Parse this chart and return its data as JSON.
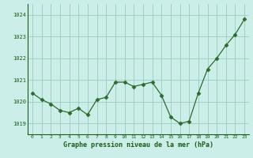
{
  "x": [
    0,
    1,
    2,
    3,
    4,
    5,
    6,
    7,
    8,
    9,
    10,
    11,
    12,
    13,
    14,
    15,
    16,
    17,
    18,
    19,
    20,
    21,
    22,
    23
  ],
  "y": [
    1020.4,
    1020.1,
    1019.9,
    1019.6,
    1019.5,
    1019.7,
    1019.4,
    1020.1,
    1020.2,
    1020.9,
    1020.9,
    1020.7,
    1020.8,
    1020.9,
    1020.3,
    1019.3,
    1019.0,
    1019.1,
    1020.4,
    1021.5,
    1022.0,
    1022.6,
    1023.1,
    1023.8
  ],
  "line_color": "#2d6a2d",
  "marker": "D",
  "marker_size": 2.5,
  "bg_color": "#cceee8",
  "grid_color": "#99ccbb",
  "xlabel": "Graphe pression niveau de la mer (hPa)",
  "xlabel_color": "#1a5c1a",
  "tick_color": "#1a5c1a",
  "ylim": [
    1018.5,
    1024.5
  ],
  "yticks": [
    1019,
    1020,
    1021,
    1022,
    1023,
    1024
  ],
  "xticks": [
    0,
    1,
    2,
    3,
    4,
    5,
    6,
    7,
    8,
    9,
    10,
    11,
    12,
    13,
    14,
    15,
    16,
    17,
    18,
    19,
    20,
    21,
    22,
    23
  ]
}
